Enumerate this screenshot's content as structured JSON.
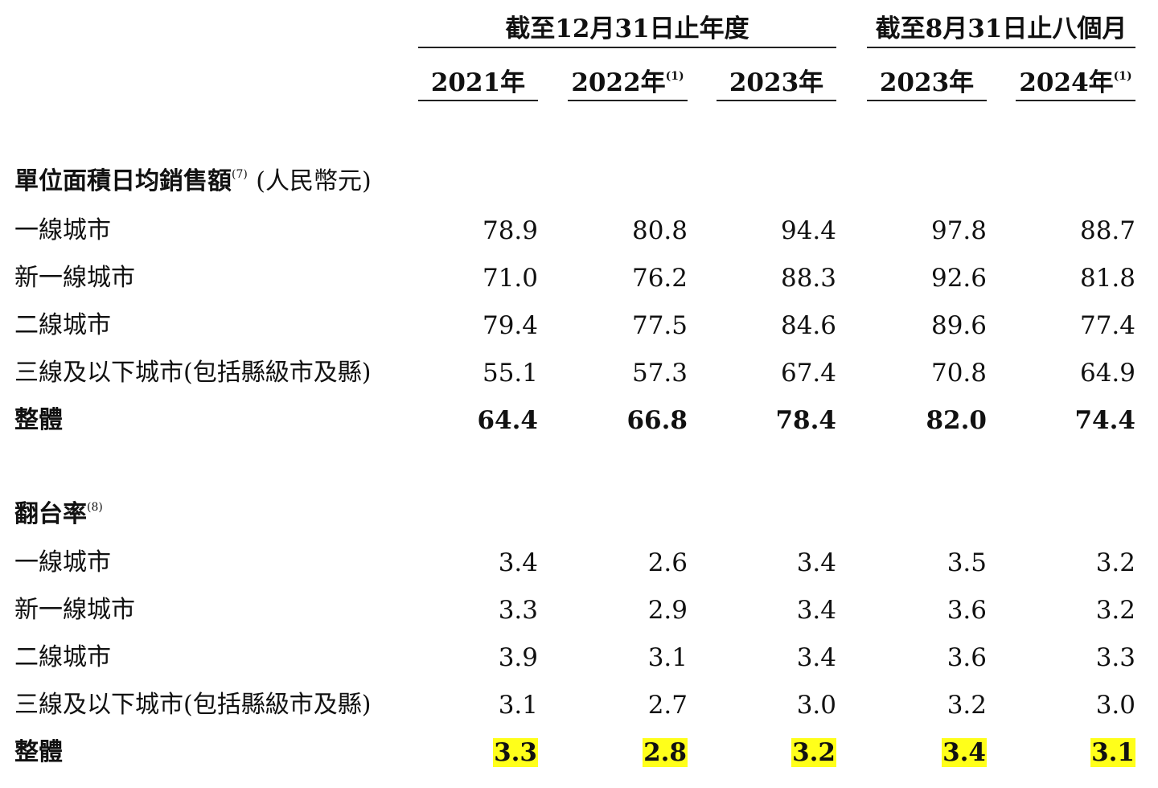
{
  "header": {
    "group_fy": "截至12月31日止年度",
    "group_8m": "截至8月31日止八個月",
    "years": [
      {
        "label": "2021年",
        "note": ""
      },
      {
        "label": "2022年",
        "note": "(1)"
      },
      {
        "label": "2023年",
        "note": ""
      },
      {
        "label": "2023年",
        "note": ""
      },
      {
        "label": "2024年",
        "note": "(1)"
      }
    ]
  },
  "sections": [
    {
      "title": "單位面積日均銷售額",
      "note": "(7)",
      "unit": "(人民幣元)",
      "rows": [
        {
          "label": "一線城市",
          "values": [
            "78.9",
            "80.8",
            "94.4",
            "97.8",
            "88.7"
          ]
        },
        {
          "label": "新一線城市",
          "values": [
            "71.0",
            "76.2",
            "88.3",
            "92.6",
            "81.8"
          ]
        },
        {
          "label": "二線城市",
          "values": [
            "79.4",
            "77.5",
            "84.6",
            "89.6",
            "77.4"
          ]
        },
        {
          "label": "三線及以下城市(包括縣級市及縣)",
          "values": [
            "55.1",
            "57.3",
            "67.4",
            "70.8",
            "64.9"
          ]
        },
        {
          "label": "整體",
          "values": [
            "64.4",
            "66.8",
            "78.4",
            "82.0",
            "74.4"
          ]
        }
      ]
    },
    {
      "title": "翻台率",
      "note": "(8)",
      "unit": "",
      "rows": [
        {
          "label": "一線城市",
          "values": [
            "3.4",
            "2.6",
            "3.4",
            "3.5",
            "3.2"
          ]
        },
        {
          "label": "新一線城市",
          "values": [
            "3.3",
            "2.9",
            "3.4",
            "3.6",
            "3.2"
          ]
        },
        {
          "label": "二線城市",
          "values": [
            "3.9",
            "3.1",
            "3.4",
            "3.6",
            "3.3"
          ]
        },
        {
          "label": "三線及以下城市(包括縣級市及縣)",
          "values": [
            "3.1",
            "2.7",
            "3.0",
            "3.2",
            "3.0"
          ]
        },
        {
          "label": "整體",
          "values": [
            "3.3",
            "2.8",
            "3.2",
            "3.4",
            "3.1"
          ]
        }
      ]
    }
  ],
  "highlight_color": "#ffff1a"
}
